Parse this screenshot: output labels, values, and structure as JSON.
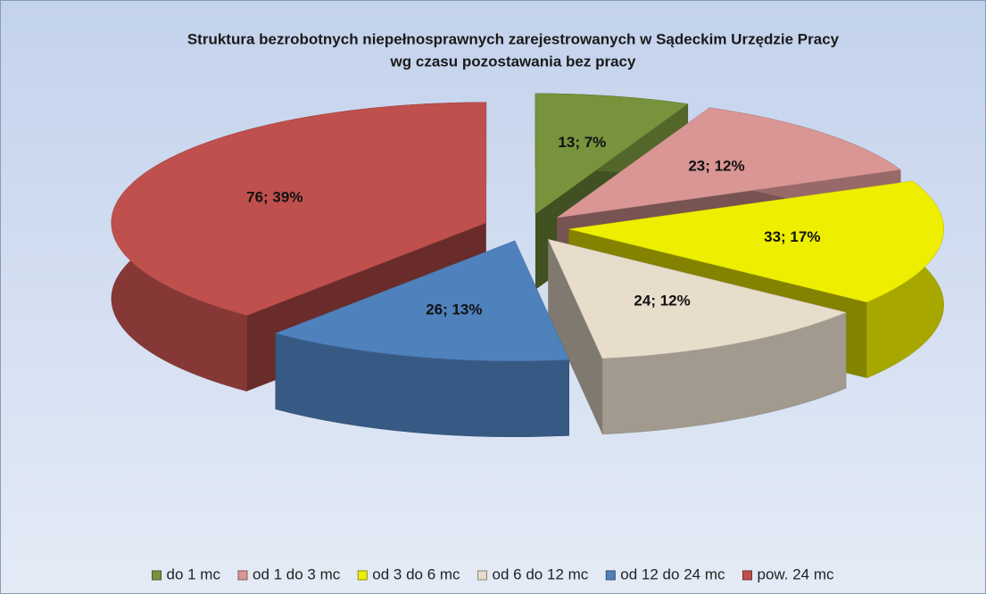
{
  "chart_data": {
    "type": "pie3d",
    "title": "Struktura bezrobotnych niepełnosprawnych zarejestrowanych w Sądeckim Urzędzie Pracy",
    "subtitle": "wg czasu pozostawania bez pracy",
    "categories": [
      "do 1 mc",
      "od 1 do 3 mc",
      "od 3 do 6 mc",
      "od 6 do 12 mc",
      "od 12 do 24 mc",
      "pow. 24 mc"
    ],
    "values": [
      13,
      23,
      33,
      24,
      26,
      76
    ],
    "value_labels": [
      "13; 7%",
      "23; 12%",
      "33; 17%",
      "24; 12%",
      "26; 13%",
      "76; 39%"
    ],
    "colors": [
      "#77933c",
      "#d99694",
      "#eeee00",
      "#e8dccb",
      "#4f81bd",
      "#c0504d"
    ],
    "legend": "bottom"
  }
}
